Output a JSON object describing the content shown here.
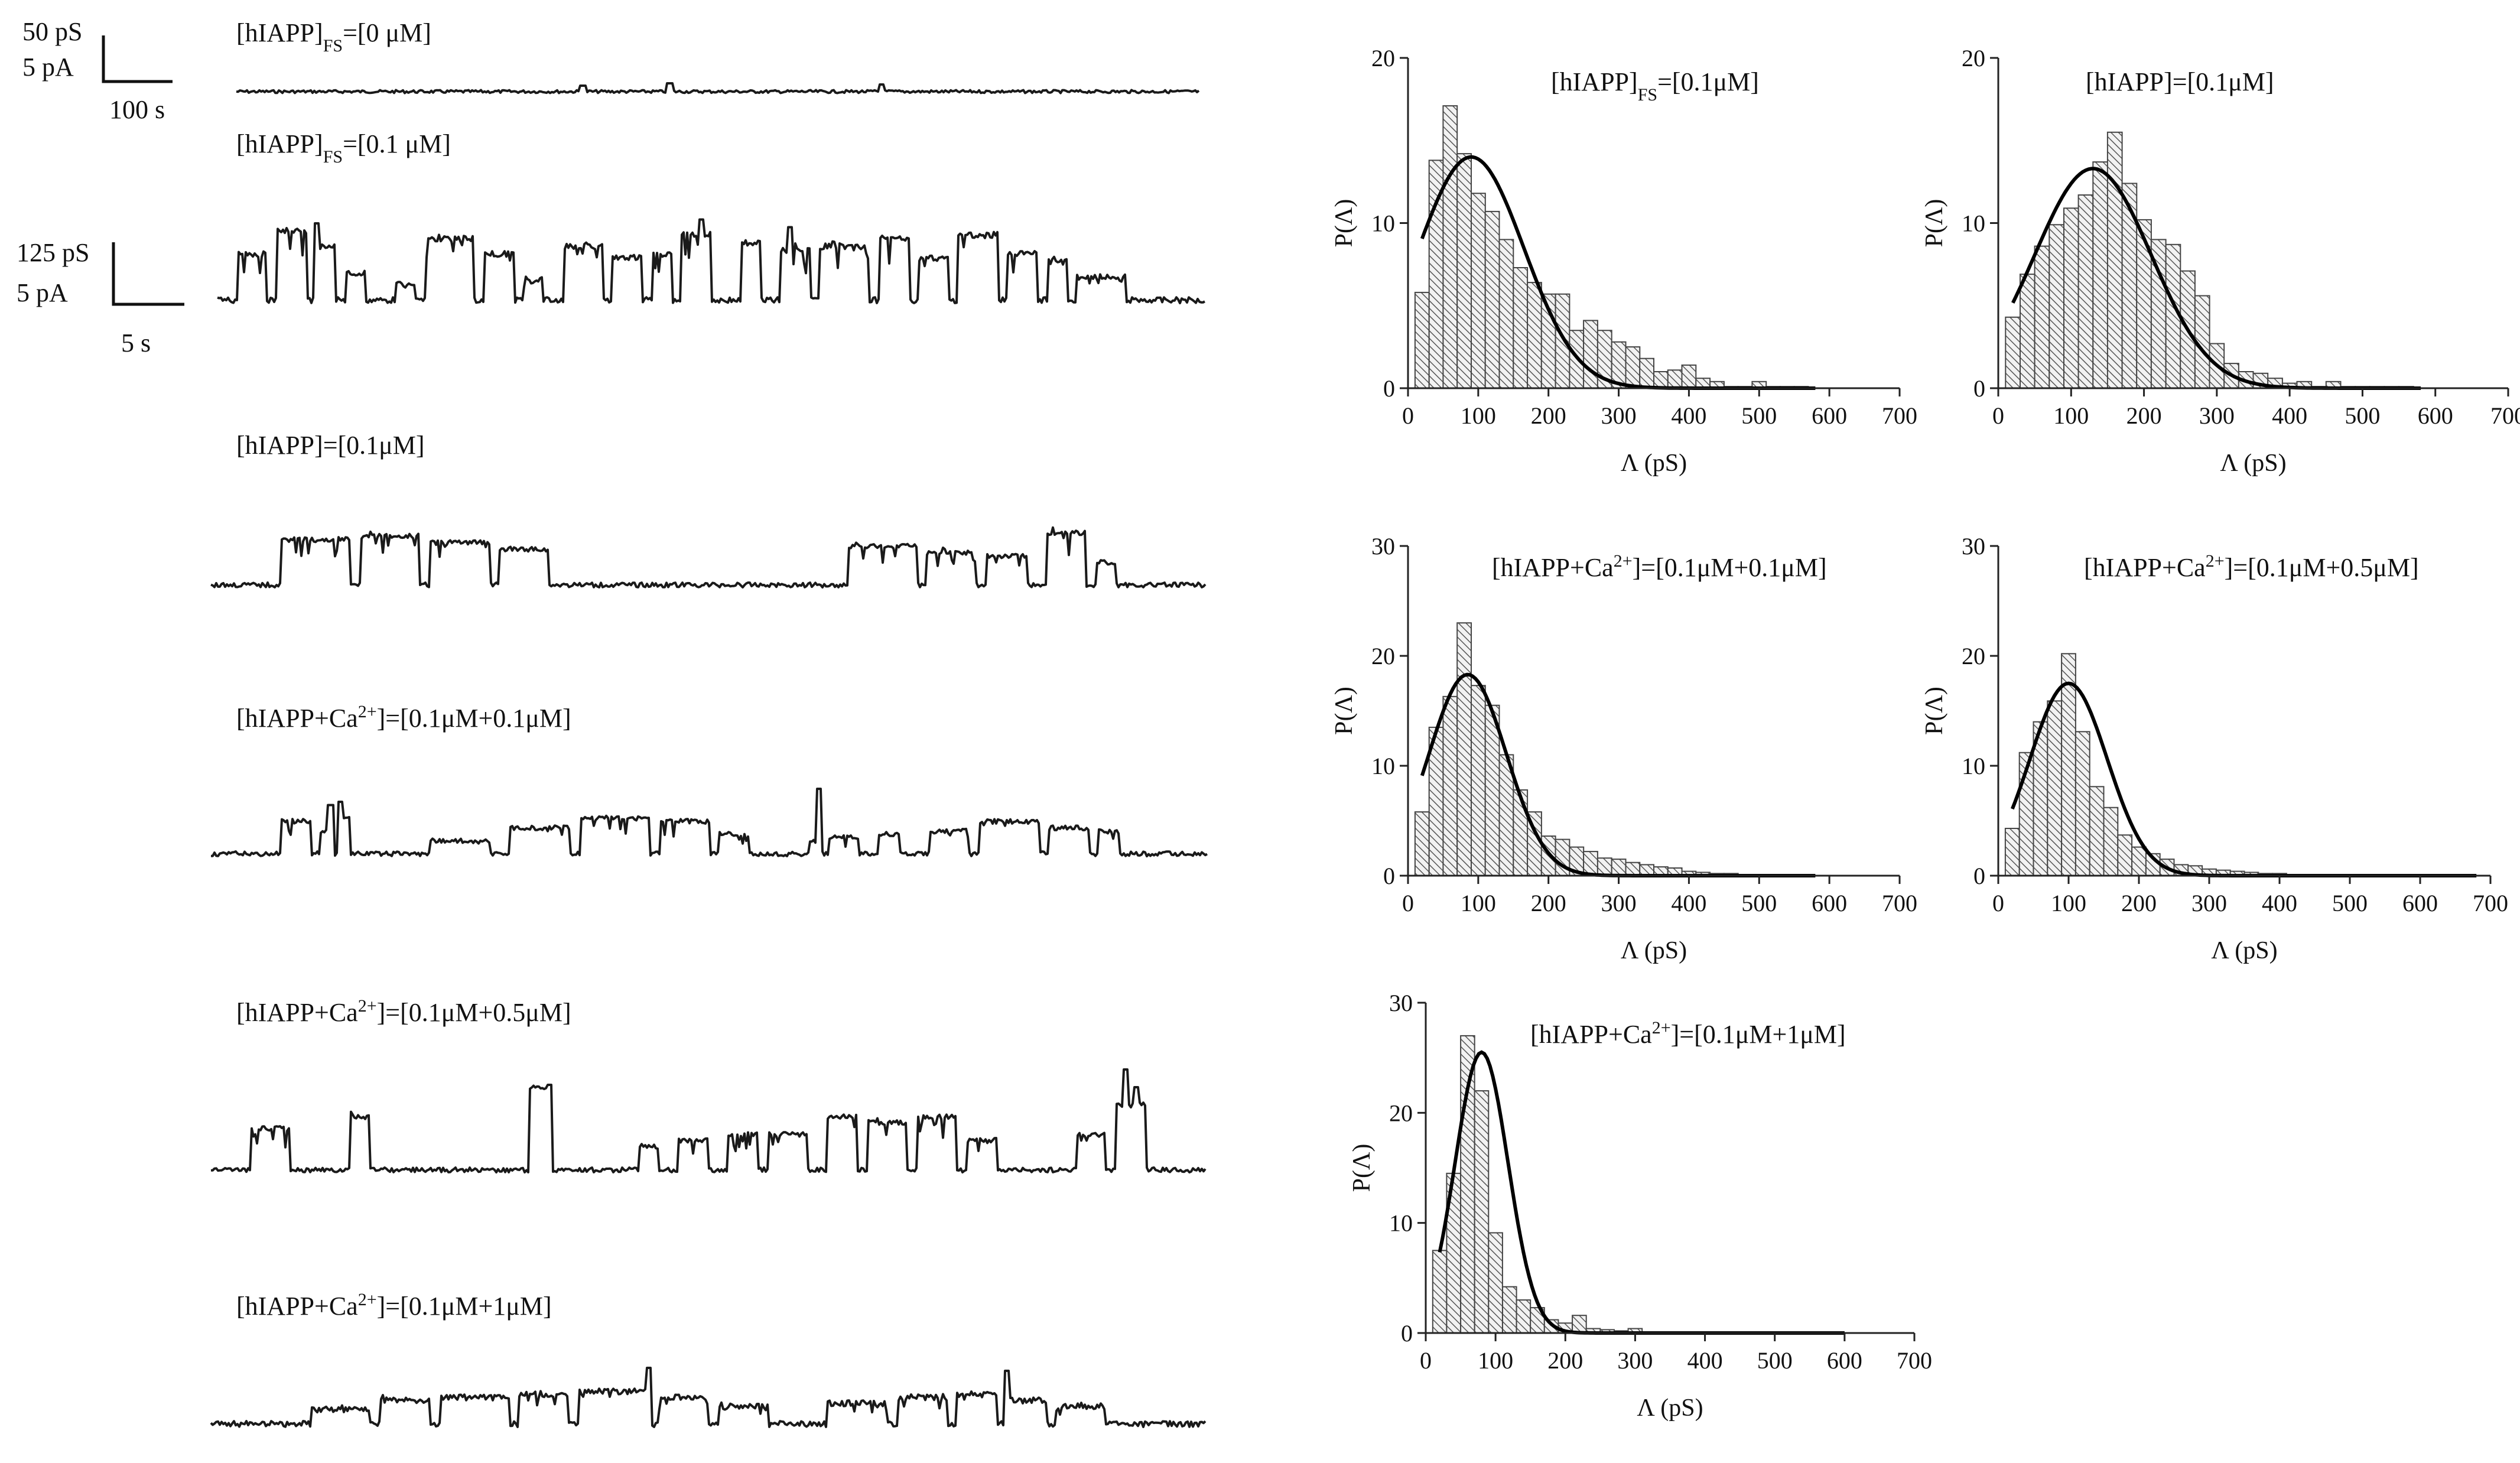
{
  "figure": {
    "scale_bars": [
      {
        "lines": [
          "50 pS",
          "5 pA"
        ],
        "time": "100 s"
      },
      {
        "lines": [
          "125 pS",
          "5 pA"
        ],
        "time": "5 s"
      }
    ],
    "traces": [
      {
        "prefix": "[hIAPP]",
        "sub": "FS",
        "sup": "",
        "rest": "=[0 μM]"
      },
      {
        "prefix": "[hIAPP]",
        "sub": "FS",
        "sup": "",
        "rest": "=[0.1 μM]"
      },
      {
        "prefix": "[hIAPP]",
        "sub": "",
        "sup": "",
        "rest": "=[0.1μM]"
      },
      {
        "prefix": "[hIAPP+Ca",
        "sub": "",
        "sup": "2+",
        "rest": "]=[0.1μM+0.1μM]"
      },
      {
        "prefix": "[hIAPP+Ca",
        "sub": "",
        "sup": "2+",
        "rest": "]=[0.1μM+0.5μM]"
      },
      {
        "prefix": "[hIAPP+Ca",
        "sub": "",
        "sup": "2+",
        "rest": "]=[0.1μM+1μM]"
      }
    ]
  },
  "chart_data": [
    {
      "type": "bar",
      "title": {
        "prefix": "[hIAPP]",
        "sub": "FS",
        "sup": "",
        "rest": "=[0.1μM]"
      },
      "xlabel": "Λ (pS)",
      "ylabel": "P(Λ)",
      "xlim": [
        0,
        700
      ],
      "ylim": [
        0,
        20
      ],
      "xticks": [
        0,
        100,
        200,
        300,
        400,
        500,
        600,
        700
      ],
      "yticks": [
        0,
        10,
        20
      ],
      "bin_width": 20,
      "bin_start": 20,
      "values": [
        5.8,
        13.8,
        17.1,
        14.2,
        11.8,
        10.7,
        9.0,
        7.3,
        6.4,
        5.7,
        5.7,
        3.5,
        4.1,
        3.5,
        2.8,
        2.5,
        1.8,
        1.0,
        1.1,
        1.4,
        0.6,
        0.4,
        0.1,
        0.1,
        0.4,
        0.1,
        0.1,
        0.1
      ],
      "fit": {
        "type": "gaussian",
        "mean": 90,
        "sd": 75,
        "peak": 14.0,
        "x_range": [
          20,
          580
        ]
      }
    },
    {
      "type": "bar",
      "title": {
        "prefix": "[hIAPP]",
        "sub": "",
        "sup": "",
        "rest": "=[0.1μM]"
      },
      "xlabel": "Λ (pS)",
      "ylabel": "P(Λ)",
      "xlim": [
        0,
        700
      ],
      "ylim": [
        0,
        20
      ],
      "xticks": [
        0,
        100,
        200,
        300,
        400,
        500,
        600,
        700
      ],
      "yticks": [
        0,
        10,
        20
      ],
      "bin_width": 20,
      "bin_start": 20,
      "values": [
        4.3,
        6.9,
        8.6,
        9.9,
        10.9,
        11.7,
        13.7,
        15.5,
        12.4,
        10.2,
        9.0,
        8.7,
        7.1,
        5.6,
        2.7,
        1.5,
        1.0,
        0.9,
        0.6,
        0.3,
        0.4,
        0.1,
        0.4,
        0.1,
        0.1,
        0.1,
        0.1,
        0.1
      ],
      "fit": {
        "type": "gaussian",
        "mean": 130,
        "sd": 80,
        "peak": 13.3,
        "x_range": [
          20,
          580
        ]
      }
    },
    {
      "type": "bar",
      "title": {
        "prefix": "[hIAPP+Ca",
        "sub": "",
        "sup": "2+",
        "rest": "]=[0.1μM+0.1μM]"
      },
      "xlabel": "Λ (pS)",
      "ylabel": "P(Λ)",
      "xlim": [
        0,
        700
      ],
      "ylim": [
        0,
        30
      ],
      "xticks": [
        0,
        100,
        200,
        300,
        400,
        500,
        600,
        700
      ],
      "yticks": [
        0,
        10,
        20,
        30
      ],
      "bin_width": 20,
      "bin_start": 20,
      "values": [
        5.8,
        13.5,
        16.3,
        23.0,
        17.3,
        15.5,
        11.0,
        7.8,
        5.8,
        3.6,
        3.3,
        2.6,
        2.2,
        1.6,
        1.5,
        1.2,
        1.0,
        0.8,
        0.7,
        0.4,
        0.3,
        0.2,
        0.2,
        0.1,
        0.1,
        0.1,
        0.1,
        0.1
      ],
      "fit": {
        "type": "gaussian",
        "mean": 85,
        "sd": 55,
        "peak": 18.3,
        "x_range": [
          20,
          580
        ]
      }
    },
    {
      "type": "bar",
      "title": {
        "prefix": "[hIAPP+Ca",
        "sub": "",
        "sup": "2+",
        "rest": "]=[0.1μM+0.5μM]"
      },
      "xlabel": "Λ (pS)",
      "ylabel": "P(Λ)",
      "xlim": [
        0,
        700
      ],
      "ylim": [
        0,
        30
      ],
      "xticks": [
        0,
        100,
        200,
        300,
        400,
        500,
        600,
        700
      ],
      "yticks": [
        0,
        10,
        20,
        30
      ],
      "bin_width": 20,
      "bin_start": 20,
      "values": [
        4.3,
        11.2,
        14.0,
        15.9,
        20.2,
        13.1,
        8.1,
        6.2,
        3.7,
        2.6,
        2.0,
        1.5,
        1.0,
        0.9,
        0.6,
        0.5,
        0.4,
        0.3,
        0.2,
        0.2,
        0.1,
        0.1,
        0.1,
        0.1,
        0.1,
        0.1,
        0.1,
        0.1,
        0.1,
        0.1,
        0.1,
        0.1,
        0.1
      ],
      "fit": {
        "type": "gaussian",
        "mean": 100,
        "sd": 55,
        "peak": 17.5,
        "x_range": [
          20,
          680
        ]
      }
    },
    {
      "type": "bar",
      "title": {
        "prefix": "[hIAPP+Ca",
        "sub": "",
        "sup": "2+",
        "rest": "]=[0.1μM+1μM]"
      },
      "xlabel": "Λ (pS)",
      "ylabel": "P(Λ)",
      "xlim": [
        0,
        700
      ],
      "ylim": [
        0,
        30
      ],
      "xticks": [
        0,
        100,
        200,
        300,
        400,
        500,
        600,
        700
      ],
      "yticks": [
        0,
        10,
        20,
        30
      ],
      "bin_width": 20,
      "bin_start": 20,
      "values": [
        7.5,
        14.5,
        27.0,
        22.0,
        9.1,
        4.2,
        3.0,
        2.3,
        1.2,
        0.9,
        1.6,
        0.4,
        0.3,
        0.2,
        0.4,
        0.1,
        0.1,
        0.1,
        0.1,
        0.1,
        0.1,
        0.1,
        0.1,
        0.1,
        0.1,
        0.1,
        0.1,
        0.1,
        0.1
      ],
      "fit": {
        "type": "gaussian",
        "mean": 80,
        "sd": 38,
        "peak": 25.5,
        "x_range": [
          20,
          600
        ]
      }
    }
  ]
}
